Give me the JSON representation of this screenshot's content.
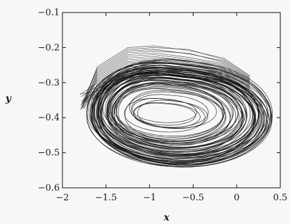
{
  "chart_data": {
    "type": "line",
    "xlabel": "x",
    "ylabel": "y",
    "xlim": [
      -2,
      0.5
    ],
    "ylim": [
      -0.6,
      -0.1
    ],
    "x_ticks": [
      -2,
      -1.5,
      -1,
      -0.5,
      0,
      0.5
    ],
    "x_tick_labels": [
      "−2",
      "−1.5",
      "−1",
      "−0.5",
      "0",
      "0.5"
    ],
    "y_ticks": [
      -0.1,
      -0.2,
      -0.3,
      -0.4,
      -0.5,
      -0.6
    ],
    "y_tick_labels": [
      "−0.1",
      "−0.2",
      "−0.3",
      "−0.4",
      "−0.5",
      "−0.6"
    ],
    "grid": false,
    "trajectory": {
      "center": [
        -0.8,
        -0.385
      ],
      "outer_semi_axes": [
        1.05,
        0.14
      ],
      "inner_semi_axes": [
        0.35,
        0.03
      ],
      "upper_left_extent": [
        -1.83,
        -0.2
      ],
      "right_extent": 0.25,
      "bottom_extent": -0.52
    }
  },
  "colors": {
    "line": "#111111",
    "frame": "#111111",
    "background": "#f7f7f5"
  }
}
